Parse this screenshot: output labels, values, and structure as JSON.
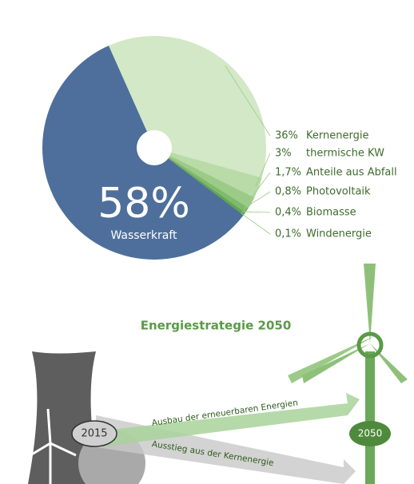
{
  "chart_data": {
    "type": "pie",
    "categories": [
      "Wasserkraft",
      "Kernenergie",
      "thermische KW",
      "Anteile aus Abfall",
      "Photovoltaik",
      "Biomasse",
      "Windenergie"
    ],
    "values": [
      58,
      36,
      3,
      1.7,
      0.8,
      0.4,
      0.1
    ],
    "value_labels": [
      "58%",
      "36%",
      "3%",
      "1,7%",
      "0,8%",
      "0,4%",
      "0,1%"
    ],
    "colors": [
      "#4e6f9b",
      "#d3e8c6",
      "#b9dba8",
      "#9ccb88",
      "#7fba6b",
      "#62a553",
      "#3d8a35"
    ],
    "annotations": [
      "Energiestrategie 2050",
      "2015",
      "2050",
      "Ausbau der erneuerbaren Energien",
      "Ausstieg aus der Kernenergie"
    ]
  }
}
